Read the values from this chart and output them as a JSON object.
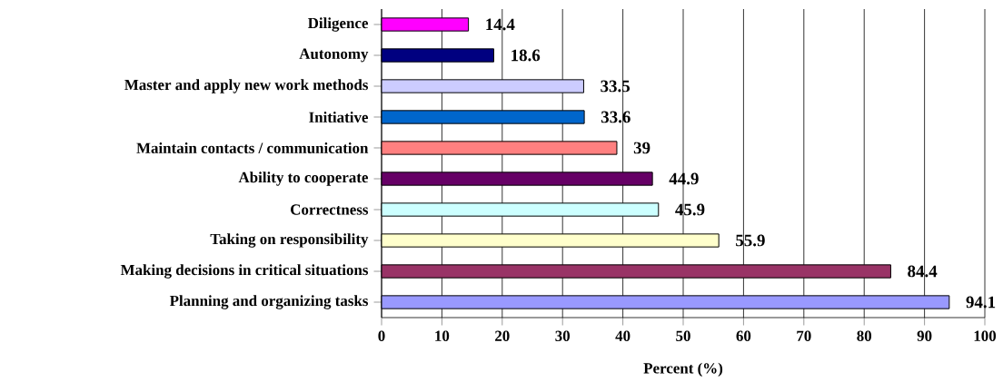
{
  "chart_data": {
    "type": "bar",
    "orientation": "horizontal",
    "xlabel": "Percent (%)",
    "categories": [
      "Diligence",
      "Autonomy",
      "Master and apply new work methods",
      "Initiative",
      "Maintain contacts / communication",
      "Ability to cooperate",
      "Correctness",
      "Taking on responsibility",
      "Making decisions in critical situations",
      "Planning and organizing tasks"
    ],
    "values": [
      14.4,
      18.6,
      33.5,
      33.6,
      39,
      44.9,
      45.9,
      55.9,
      84.4,
      94.1
    ],
    "colors": [
      "#ff00ff",
      "#000080",
      "#ccccff",
      "#0066cc",
      "#ff8080",
      "#660066",
      "#ccffff",
      "#ffffcc",
      "#993366",
      "#9999ff"
    ],
    "xlim": [
      0,
      100
    ],
    "xticks": [
      0,
      10,
      20,
      30,
      40,
      50,
      60,
      70,
      80,
      90,
      100
    ],
    "grid": "x",
    "data_labels": true
  }
}
